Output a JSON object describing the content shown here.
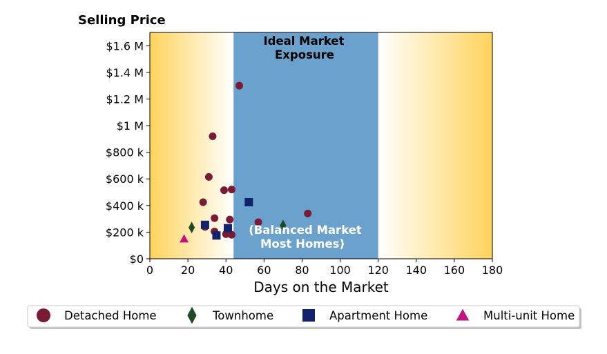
{
  "chart_data": {
    "type": "scatter",
    "ylabel": "Selling Price",
    "xlabel": "Days on the Market",
    "xlim": [
      0,
      180
    ],
    "ylim": [
      0,
      1700000
    ],
    "x_ticks": [
      0,
      20,
      40,
      60,
      80,
      100,
      120,
      140,
      160,
      180
    ],
    "x_tick_labels": [
      "0",
      "20",
      "40",
      "60",
      "80",
      "100",
      "120",
      "140",
      "160",
      "180"
    ],
    "y_ticks": [
      0,
      200000,
      400000,
      600000,
      800000,
      1000000,
      1200000,
      1400000,
      1600000
    ],
    "y_tick_labels": [
      "$0",
      "$200 k",
      "$400 k",
      "$600 k",
      "$800 k",
      "$1 M",
      "$1.2 M",
      "$1.4 M",
      "$1.6 M"
    ],
    "band": {
      "x_range": [
        44,
        120
      ],
      "top_text": [
        "Ideal Market",
        "Exposure"
      ],
      "bottom_text": [
        "(Balanced Market",
        "Most Homes)"
      ],
      "color": "#6aa1cd"
    },
    "gradient_color": "#ffd35c",
    "legend_position": "bottom",
    "series": [
      {
        "name": "Detached Home",
        "marker": "circle",
        "color": "#7b1a35",
        "points": [
          [
            47,
            1300000
          ],
          [
            33,
            920000
          ],
          [
            31,
            615000
          ],
          [
            39,
            515000
          ],
          [
            43,
            520000
          ],
          [
            28,
            425000
          ],
          [
            83,
            340000
          ],
          [
            34,
            305000
          ],
          [
            42,
            295000
          ],
          [
            57,
            275000
          ],
          [
            29,
            240000
          ],
          [
            34,
            205000
          ],
          [
            40,
            185000
          ],
          [
            43,
            180000
          ]
        ]
      },
      {
        "name": "Townhome",
        "marker": "diamond",
        "color": "#1e4b25",
        "points": [
          [
            22,
            235000
          ],
          [
            70,
            250000
          ]
        ]
      },
      {
        "name": "Apartment Home",
        "marker": "square",
        "color": "#13236b",
        "points": [
          [
            52,
            425000
          ],
          [
            29,
            255000
          ],
          [
            41,
            230000
          ],
          [
            35,
            175000
          ]
        ]
      },
      {
        "name": "Multi-unit Home",
        "marker": "triangle",
        "color": "#c4127e",
        "points": [
          [
            18,
            150000
          ]
        ]
      }
    ]
  }
}
